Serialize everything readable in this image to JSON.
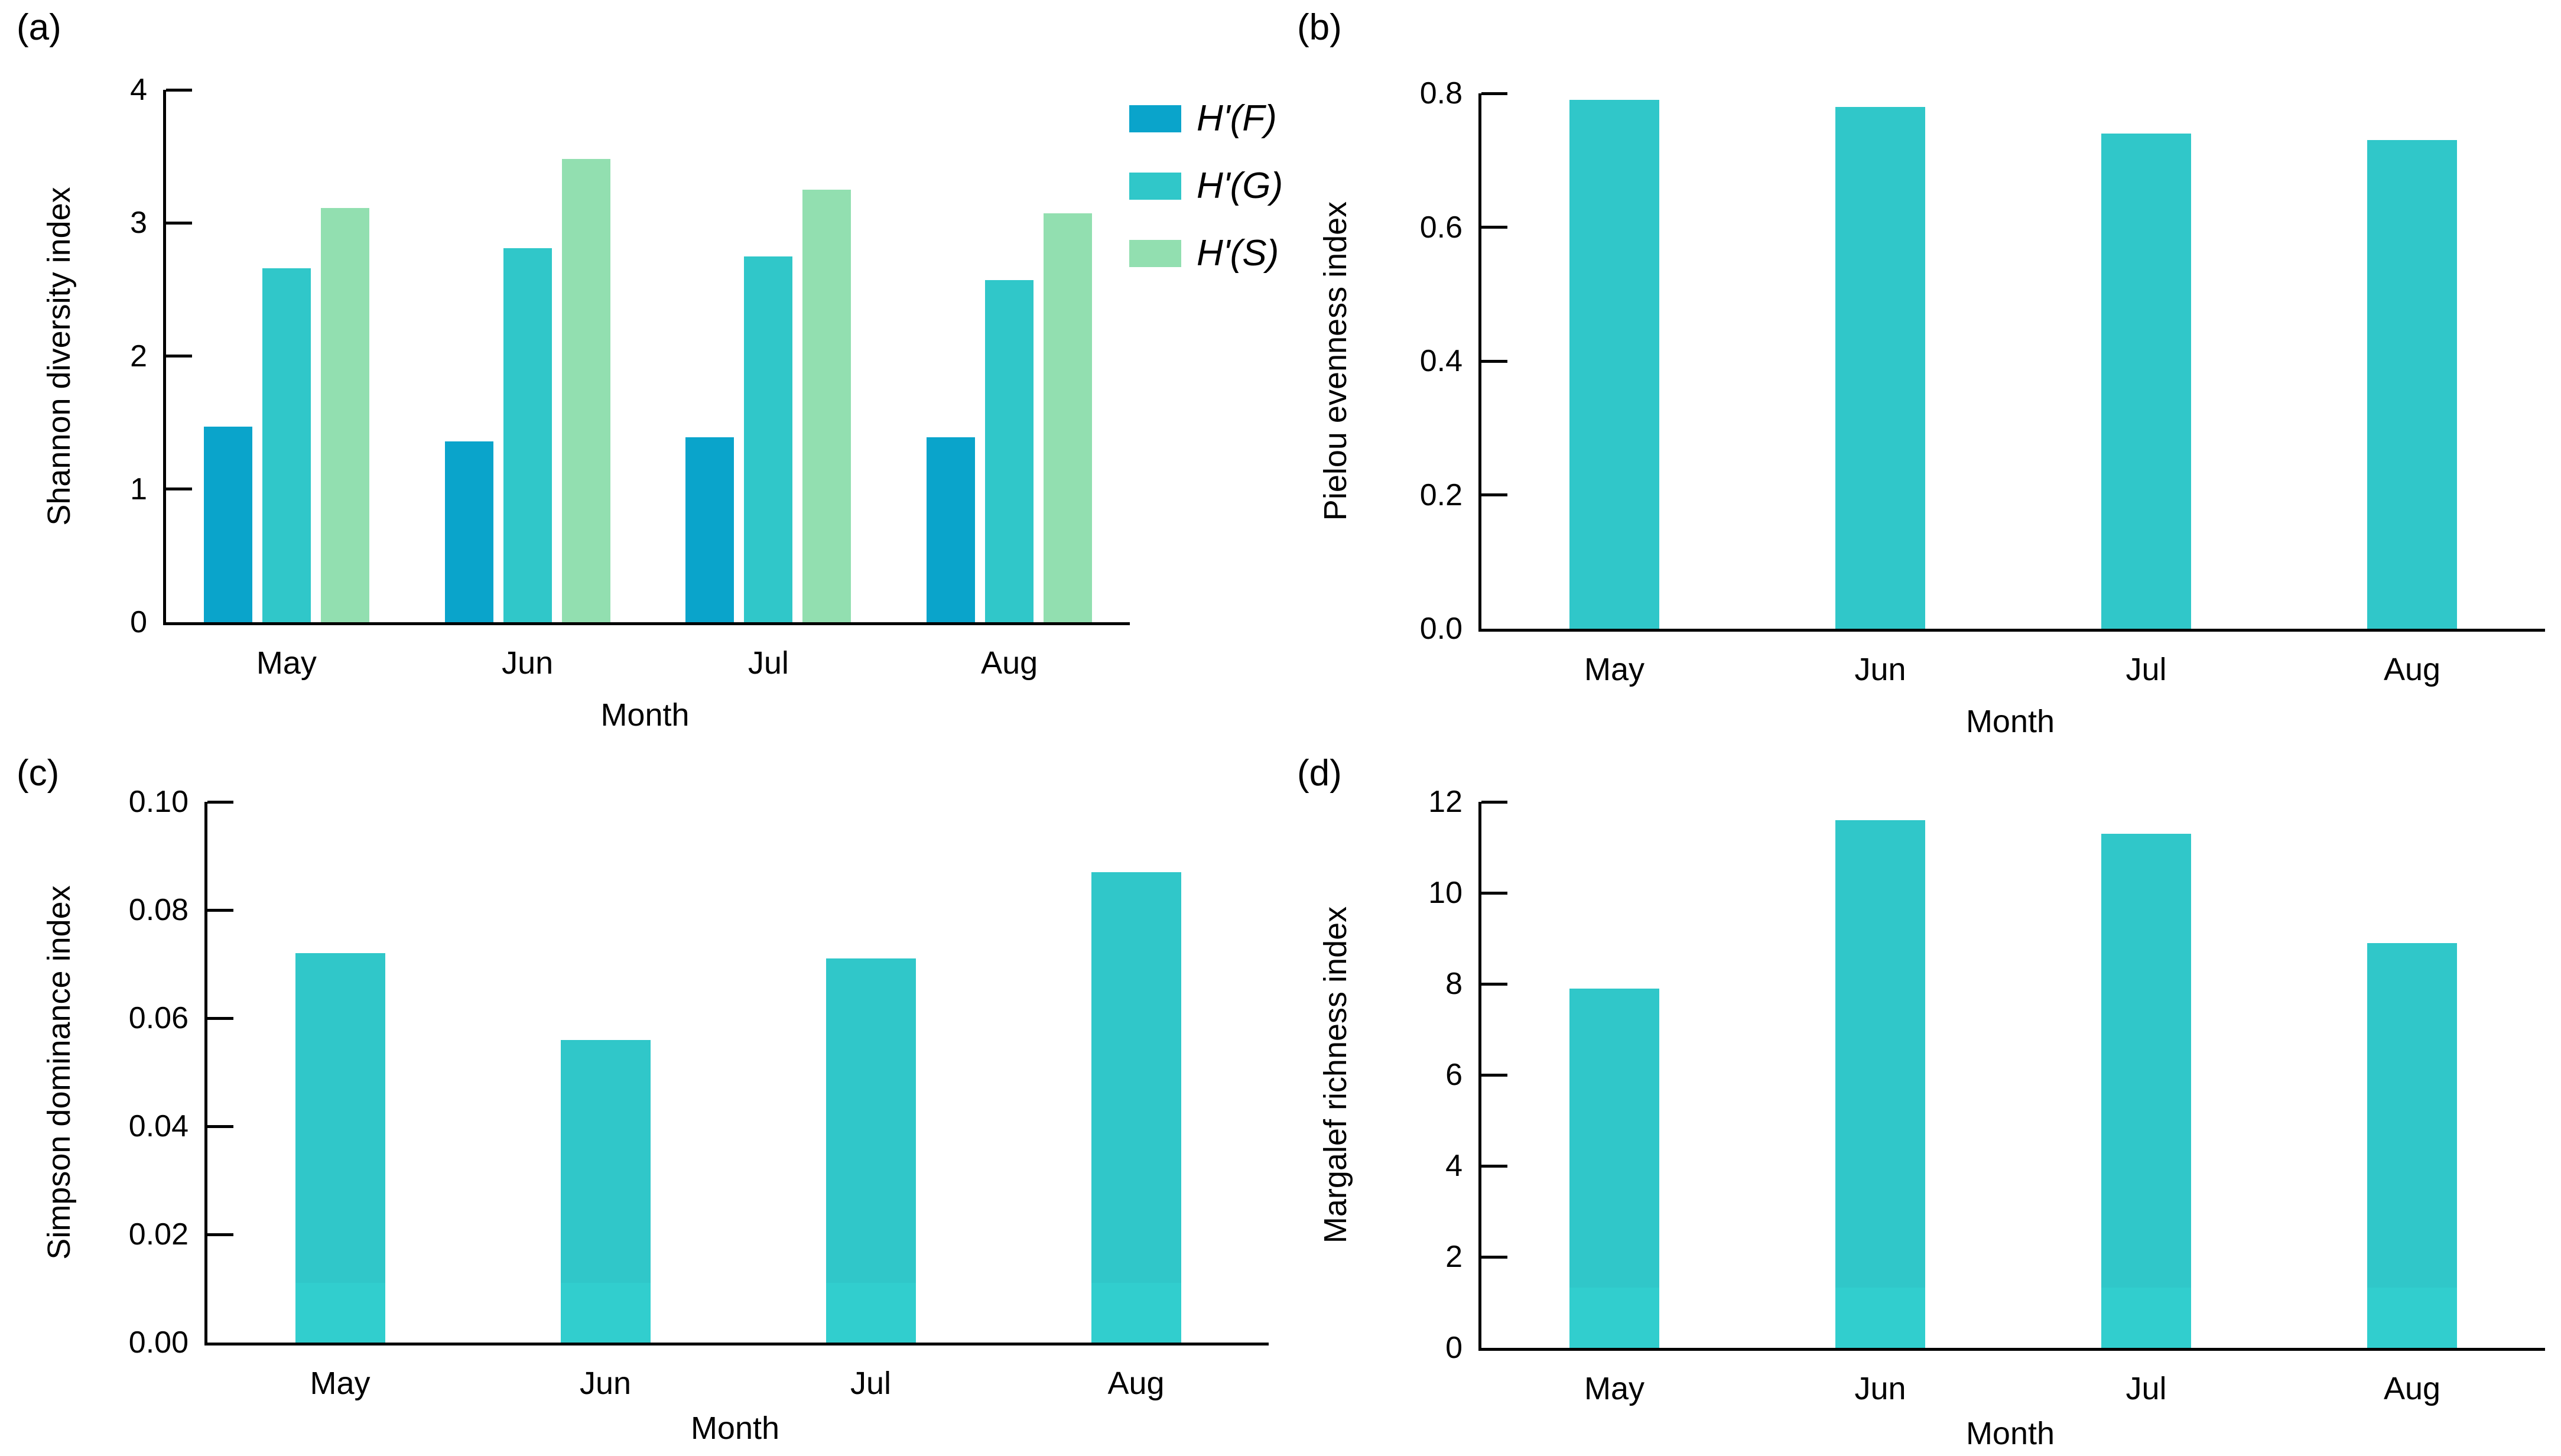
{
  "figure": {
    "xlabel_shared": "Month",
    "categories": [
      "May",
      "Jun",
      "Jul",
      "Aug"
    ],
    "accent_colors": {
      "blue": "#0aa4cb",
      "teal": "#30c7c9",
      "green": "#92dfb0"
    }
  },
  "chart_data": [
    {
      "id": "a",
      "panel_label": "(a)",
      "type": "bar",
      "title": "",
      "ylabel": "Shannon diversity index",
      "xlabel": "Month",
      "categories": [
        "May",
        "Jun",
        "Jul",
        "Aug"
      ],
      "series": [
        {
          "name": "H'(F)",
          "color": "#0aa4cb",
          "values": [
            1.47,
            1.36,
            1.39,
            1.39
          ]
        },
        {
          "name": "H'(G)",
          "color": "#30c7c9",
          "values": [
            2.66,
            2.81,
            2.75,
            2.57
          ]
        },
        {
          "name": "H'(S)",
          "color": "#92dfb0",
          "values": [
            3.11,
            3.48,
            3.25,
            3.07
          ]
        }
      ],
      "ylim": [
        0,
        4
      ],
      "yticks": [
        0,
        1,
        2,
        3,
        4
      ],
      "ytick_labels": [
        "0",
        "1",
        "2",
        "3",
        "4"
      ],
      "grid": false,
      "show_legend": true,
      "legend_position": "outside-top-right"
    },
    {
      "id": "b",
      "panel_label": "(b)",
      "type": "bar",
      "title": "",
      "ylabel": "Pielou evenness index",
      "xlabel": "Month",
      "categories": [
        "May",
        "Jun",
        "Jul",
        "Aug"
      ],
      "series": [
        {
          "color": "#30c7c9",
          "values": [
            0.79,
            0.78,
            0.74,
            0.73
          ]
        }
      ],
      "ylim": [
        0,
        0.8
      ],
      "yticks": [
        0,
        0.2,
        0.4,
        0.6,
        0.8
      ],
      "ytick_labels": [
        "0.0",
        "0.2",
        "0.4",
        "0.6",
        "0.8"
      ],
      "grid": false,
      "show_legend": false
    },
    {
      "id": "c",
      "panel_label": "(c)",
      "type": "bar",
      "title": "",
      "ylabel": "Simpson dominance index",
      "xlabel": "Month",
      "categories": [
        "May",
        "Jun",
        "Jul",
        "Aug"
      ],
      "series": [
        {
          "color": "#30c7c9",
          "values": [
            0.072,
            0.056,
            0.071,
            0.087
          ]
        }
      ],
      "ylim": [
        0,
        0.1
      ],
      "yticks": [
        0,
        0.02,
        0.04,
        0.06,
        0.08,
        0.1
      ],
      "ytick_labels": [
        "0.00",
        "0.02",
        "0.04",
        "0.06",
        "0.08",
        "0.10"
      ],
      "grid": false,
      "show_legend": false,
      "bottom_band": {
        "fraction": 0.11,
        "color": "rgba(64,255,240,0.13)"
      }
    },
    {
      "id": "d",
      "panel_label": "(d)",
      "type": "bar",
      "title": "",
      "ylabel": "Margalef richness index",
      "xlabel": "Month",
      "categories": [
        "May",
        "Jun",
        "Jul",
        "Aug"
      ],
      "series": [
        {
          "color": "#30c7c9",
          "values": [
            7.9,
            11.6,
            11.3,
            8.9
          ]
        }
      ],
      "ylim": [
        0,
        12
      ],
      "yticks": [
        0,
        2,
        4,
        6,
        8,
        10,
        12
      ],
      "ytick_labels": [
        "0",
        "2",
        "4",
        "6",
        "8",
        "10",
        "12"
      ],
      "grid": false,
      "show_legend": false,
      "bottom_band": {
        "fraction": 0.11,
        "color": "rgba(64,255,240,0.13)"
      }
    }
  ]
}
